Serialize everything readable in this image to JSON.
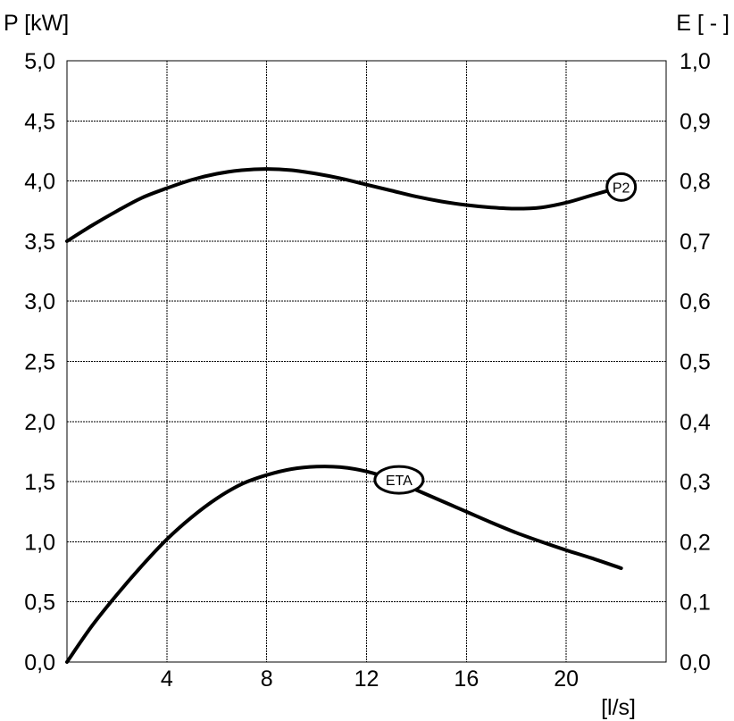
{
  "chart_data": {
    "type": "line",
    "xlabel": "[l/s]",
    "ylabel_left": "P [kW]",
    "ylabel_right": "E [ - ]",
    "xlim": [
      0,
      24
    ],
    "ylim_left": [
      0,
      5
    ],
    "ylim_right": [
      0,
      1
    ],
    "x_ticks": [
      4,
      8,
      12,
      16,
      20
    ],
    "x_tick_labels": [
      "4",
      "8",
      "12",
      "16",
      "20"
    ],
    "y_left_ticks": [
      0,
      0.5,
      1,
      1.5,
      2,
      2.5,
      3,
      3.5,
      4,
      4.5,
      5
    ],
    "y_left_tick_labels": [
      "0,0",
      "0,5",
      "1,0",
      "1,5",
      "2,0",
      "2,5",
      "3,0",
      "3,5",
      "4,0",
      "4,5",
      "5,0"
    ],
    "y_right_ticks": [
      0,
      0.1,
      0.2,
      0.3,
      0.4,
      0.5,
      0.6,
      0.7,
      0.8,
      0.9,
      1.0
    ],
    "y_right_tick_labels": [
      "0,0",
      "0,1",
      "0,2",
      "0,3",
      "0,4",
      "0,5",
      "0,6",
      "0,7",
      "0,8",
      "0,9",
      "1,0"
    ],
    "grid": true,
    "series": [
      {
        "name": "P2",
        "axis": "left",
        "color": "#000000",
        "x": [
          0,
          1,
          2,
          3,
          4,
          5,
          6,
          7,
          8,
          9,
          10,
          11,
          12,
          13,
          14,
          15,
          16,
          17,
          18,
          19,
          20,
          21,
          22.2
        ],
        "values": [
          3.5,
          3.63,
          3.75,
          3.86,
          3.94,
          4.01,
          4.06,
          4.09,
          4.1,
          4.09,
          4.06,
          4.02,
          3.97,
          3.92,
          3.87,
          3.83,
          3.8,
          3.78,
          3.77,
          3.78,
          3.82,
          3.88,
          3.95
        ],
        "label": "P2",
        "label_at": [
          22.2,
          3.95
        ]
      },
      {
        "name": "ETA",
        "axis": "right",
        "color": "#000000",
        "x": [
          0,
          1,
          2,
          3,
          4,
          5,
          6,
          7,
          8,
          9,
          10,
          11,
          12,
          13,
          14,
          15,
          16,
          17,
          18,
          19,
          20,
          21,
          22.2
        ],
        "values": [
          0.0,
          0.06,
          0.112,
          0.16,
          0.204,
          0.241,
          0.272,
          0.296,
          0.311,
          0.321,
          0.325,
          0.324,
          0.317,
          0.304,
          0.286,
          0.268,
          0.25,
          0.232,
          0.215,
          0.2,
          0.186,
          0.173,
          0.156
        ],
        "label": "ETA",
        "label_at": [
          13.3,
          0.303
        ]
      }
    ]
  }
}
